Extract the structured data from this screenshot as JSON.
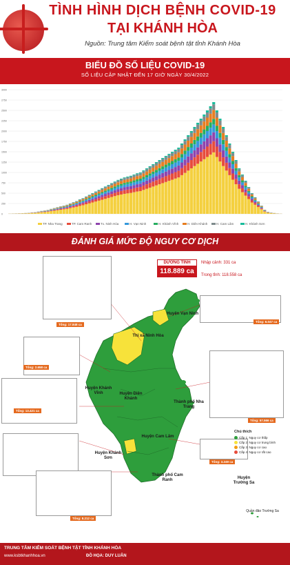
{
  "header": {
    "title_line1": "TÌNH HÌNH DỊCH BỆNH COVID-19",
    "title_line2": "TẠI KHÁNH HÒA",
    "source": "Nguồn: Trung tâm Kiểm soát bệnh tật tỉnh Khánh Hòa"
  },
  "chart_section": {
    "title": "BIỂU ĐỒ SỐ LIỆU COVID-19",
    "subtitle": "SỐ LIỆU CẬP NHẬT ĐẾN 17 GIỜ NGÀY 30/4/2022"
  },
  "chart_data": {
    "type": "bar",
    "stacked": true,
    "ylim": [
      0,
      3000
    ],
    "yticks": [
      0,
      250,
      500,
      750,
      1000,
      1250,
      1500,
      1750,
      2000,
      2250,
      2500,
      2750,
      3000
    ],
    "grid": true,
    "legend_position": "bottom",
    "totals": [
      5,
      8,
      10,
      12,
      15,
      20,
      25,
      35,
      40,
      55,
      70,
      80,
      95,
      120,
      140,
      160,
      180,
      200,
      220,
      250,
      280,
      310,
      350,
      380,
      420,
      460,
      500,
      540,
      580,
      620,
      660,
      700,
      740,
      780,
      820,
      850,
      880,
      900,
      920,
      950,
      980,
      1000,
      1050,
      1100,
      1150,
      1200,
      1250,
      1300,
      1350,
      1400,
      1450,
      1500,
      1550,
      1600,
      1700,
      1800,
      1900,
      2000,
      2100,
      2200,
      2300,
      2400,
      2500,
      2600,
      2700,
      2500,
      2300,
      2100,
      1900,
      1700,
      1500,
      1300,
      1100,
      950,
      800,
      650,
      500,
      400,
      300,
      200,
      100,
      50,
      30,
      20,
      10,
      5
    ],
    "series": [
      {
        "name": "TP. Nha Trang",
        "color": "#f4d03f"
      },
      {
        "name": "TP. Cam Ranh",
        "color": "#e74c3c"
      },
      {
        "name": "Tx. Ninh Hòa",
        "color": "#8e44ad"
      },
      {
        "name": "H. Vạn Ninh",
        "color": "#3498db"
      },
      {
        "name": "H. Khánh Vĩnh",
        "color": "#27ae60"
      },
      {
        "name": "H. Diên Khánh",
        "color": "#e67e22"
      },
      {
        "name": "H. Cam Lâm",
        "color": "#7f8c8d"
      },
      {
        "name": "H. Khánh Sơn",
        "color": "#1abc9c"
      }
    ]
  },
  "risk_section": {
    "title": "ĐÁNH GIÁ MỨC ĐỘ NGUY CƠ DỊCH"
  },
  "positive": {
    "label": "DƯƠNG TÍNH",
    "total": "118.889 ca",
    "imported": "Nhập cảnh: 331 ca",
    "domestic": "Trong tỉnh: 118.558 ca"
  },
  "map": {
    "labels": {
      "van_ninh": "Huyện Vạn Ninh",
      "ninh_hoa": "Thị xã Ninh Hòa",
      "khanh_vinh": "Huyện Khánh Vĩnh",
      "dien_khanh": "Huyện Diên Khánh",
      "nha_trang": "Thành phố Nha Trang",
      "cam_lam": "Huyện Cam Lâm",
      "khanh_son": "Huyện Khánh Sơn",
      "cam_ranh": "Thành phố Cam Ranh",
      "truong_sa": "Huyện Trường Sa",
      "truong_sa_islands": "Quần đảo Trường Sa"
    },
    "totals": {
      "ninh_hoa": "Tổng: 17.848 ca",
      "van_ninh": "Tổng: 6.047 ca",
      "khanh_vinh": "Tổng: 2.658 ca",
      "nha_trang": "Tổng: 57.566 ca",
      "dien_khanh": "Tổng: 13.421 ca",
      "khanh_son": "Tổng: 3.249 ca",
      "cam_lam": "Tổng: 8.212 ca"
    }
  },
  "risk_legend": {
    "title": "Chú thích",
    "levels": [
      {
        "label": "Cấp 1: Nguy cơ thấp",
        "color": "#2e9e3c"
      },
      {
        "label": "Cấp 2: Nguy cơ trung bình",
        "color": "#f7e23a"
      },
      {
        "label": "Cấp 3: Nguy cơ cao",
        "color": "#f39c12"
      },
      {
        "label": "Cấp 4: Nguy cơ rất cao",
        "color": "#e74c3c"
      }
    ]
  },
  "footer": {
    "org": "TRUNG TÂM KIỂM SOÁT BỆNH TẬT TỈNH KHÁNH HÒA",
    "website": "www.ksbtkhanhhoa.vn",
    "designer": "ĐỒ HỌA: DUY LUÂN"
  },
  "colors": {
    "brand_red": "#c8161d",
    "map_green": "#2e9e3c",
    "map_yellow": "#f7e23a",
    "total_tag": "#e56a1f"
  }
}
